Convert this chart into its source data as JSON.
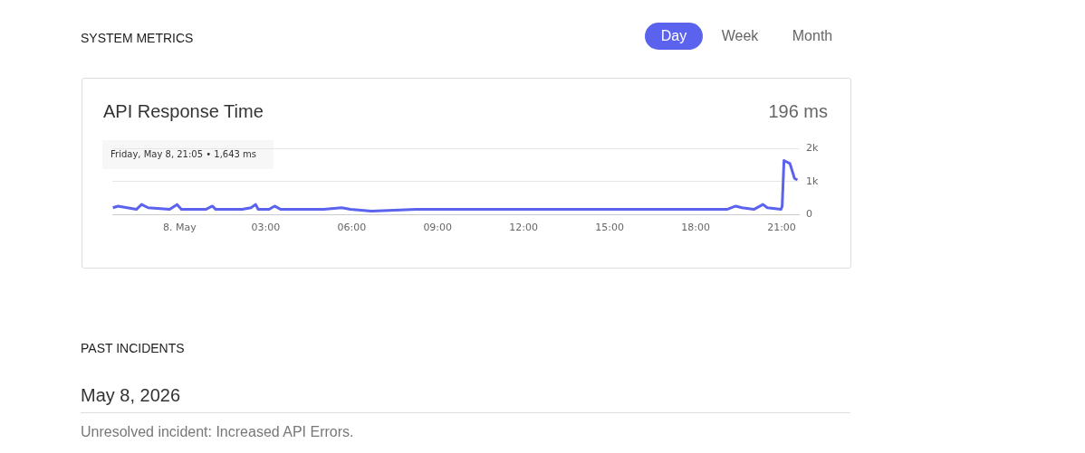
{
  "chart_data": {
    "type": "line",
    "title": "API Response Time",
    "subtitle": "196 ms",
    "x": [
      -2.33,
      -2.15,
      -1.51,
      -1.33,
      -1.1,
      -0.35,
      -0.09,
      0.06,
      0.91,
      1.14,
      1.26,
      2.05,
      2.18,
      2.49,
      2.65,
      2.74,
      3.12,
      3.31,
      3.53,
      4.42,
      4.57,
      5.02,
      5.65,
      5.96,
      6.69,
      8.26,
      9.84,
      12.05,
      13.0,
      14.04,
      16.06,
      18.04,
      19.09,
      19.4,
      19.62,
      20.03,
      20.35,
      20.5,
      20.98,
      21.02,
      21.083,
      21.29,
      21.45,
      21.55
    ],
    "series": [
      {
        "color": "#5b63ee",
        "values": [
          200,
          250,
          150,
          300,
          200,
          150,
          300,
          150,
          150,
          250,
          150,
          150,
          150,
          200,
          300,
          150,
          150,
          250,
          150,
          150,
          150,
          150,
          200,
          150,
          100,
          150,
          150,
          150,
          150,
          150,
          150,
          150,
          150,
          250,
          200,
          150,
          300,
          200,
          150,
          250,
          1643,
          1550,
          1100,
          1050
        ]
      }
    ],
    "xlim": [
      -2.35,
      21.6
    ],
    "xticks": [
      {
        "value": 0,
        "label": "8. May"
      },
      {
        "value": 3,
        "label": "03:00"
      },
      {
        "value": 6,
        "label": "06:00"
      },
      {
        "value": 9,
        "label": "09:00"
      },
      {
        "value": 12,
        "label": "12:00"
      },
      {
        "value": 15,
        "label": "15:00"
      },
      {
        "value": 18,
        "label": "18:00"
      },
      {
        "value": 21,
        "label": "21:00"
      }
    ],
    "ylim": [
      0,
      2000
    ],
    "yticks": [
      0,
      {
        "value": 1000,
        "label": "1k"
      },
      {
        "value": 2000,
        "label": "2k"
      }
    ],
    "grid": "y",
    "legend": false,
    "marker": "none",
    "line_style": "solid",
    "annotations": [
      "SYSTEM METRICS",
      "Day",
      "Week",
      "Month",
      "Friday, May 8, 21:05 • 1,643 ms",
      "PAST INCIDENTS",
      "May 8, 2026",
      "Unresolved incident: Increased API Errors."
    ]
  }
}
